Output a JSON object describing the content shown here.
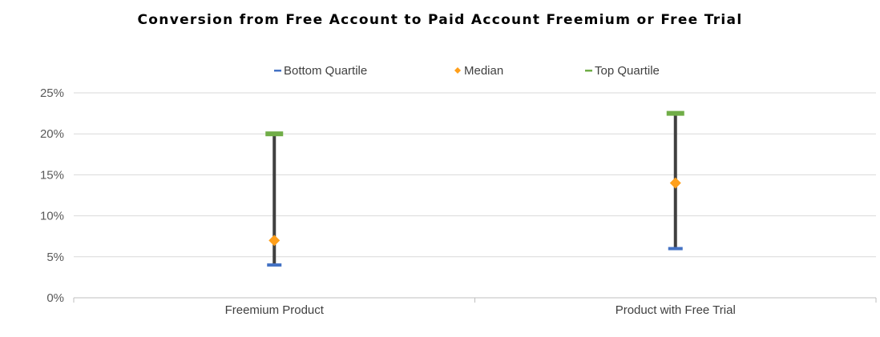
{
  "chart_data": {
    "type": "stock",
    "title": "Conversion from Free Account to Paid Account Freemium or Free Trial",
    "categories": [
      "Freemium Product",
      "Product with Free Trial"
    ],
    "series": [
      {
        "name": "Bottom Quartile",
        "values": [
          4,
          6
        ],
        "color": "#4472C4",
        "marker": "dash"
      },
      {
        "name": "Median",
        "values": [
          7,
          14
        ],
        "color": "#FF9F1A",
        "marker": "diamond"
      },
      {
        "name": "Top Quartile",
        "values": [
          20,
          22.5
        ],
        "color": "#70AD47",
        "marker": "dash"
      }
    ],
    "range_line_color": "#404040",
    "ylim": [
      0,
      25
    ],
    "yticks": [
      0,
      5,
      10,
      15,
      20,
      25
    ],
    "ytick_labels": [
      "0%",
      "5%",
      "10%",
      "15%",
      "20%",
      "25%"
    ],
    "grid": true,
    "legend_position": "top"
  }
}
